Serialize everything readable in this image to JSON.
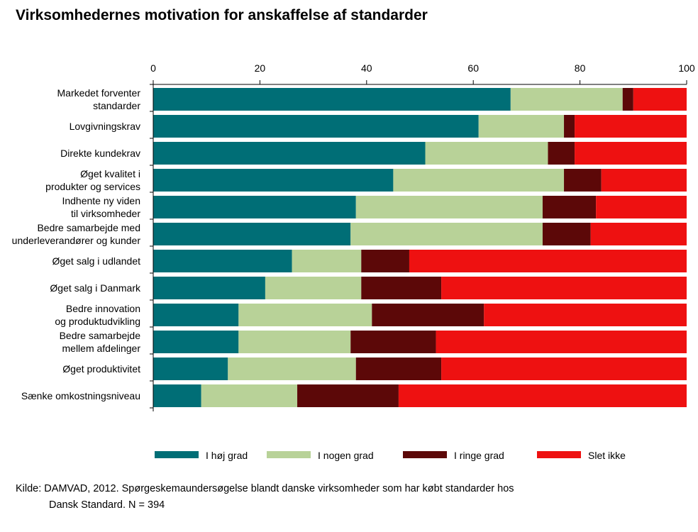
{
  "chart_title": "Virksomhedernes motivation for anskaffelse af standarder",
  "source": {
    "line1": "Kilde: DAMVAD, 2012. Spørgeskemaundersøgelse blandt danske virksomheder som har købt standarder hos",
    "line2": "Dansk Standard. N = 394"
  },
  "chart_data": {
    "type": "bar",
    "orientation": "horizontal",
    "stacked": true,
    "title": "Virksomhedernes motivation for anskaffelse af standarder",
    "xlim": [
      0,
      100
    ],
    "xticks": [
      0,
      20,
      40,
      60,
      80,
      100
    ],
    "x_axis_position": "top",
    "legend_position": "bottom",
    "categories": [
      [
        "Markedet forventer",
        "standarder"
      ],
      [
        "Lovgivningskrav"
      ],
      [
        "Direkte kundekrav"
      ],
      [
        "Øget kvalitet i",
        "produkter og services"
      ],
      [
        "Indhente ny viden",
        "til virksomheder"
      ],
      [
        "Bedre samarbejde med",
        "underleverandører og kunder"
      ],
      [
        "Øget salg i udlandet"
      ],
      [
        "Øget salg i Danmark"
      ],
      [
        "Bedre innovation",
        "og produktudvikling"
      ],
      [
        "Bedre samarbejde",
        "mellem afdelinger"
      ],
      [
        "Øget produktivitet"
      ],
      [
        "Sænke omkostningsniveau"
      ]
    ],
    "series": [
      {
        "name": "I høj grad",
        "color": "#006e76",
        "values": [
          67,
          61,
          51,
          45,
          38,
          37,
          26,
          21,
          16,
          16,
          14,
          9
        ]
      },
      {
        "name": "I nogen grad",
        "color": "#b8d298",
        "values": [
          21,
          16,
          23,
          32,
          35,
          36,
          13,
          18,
          25,
          21,
          24,
          18
        ]
      },
      {
        "name": "I ringe grad",
        "color": "#5c0808",
        "values": [
          2,
          2,
          5,
          7,
          10,
          9,
          9,
          15,
          21,
          16,
          16,
          19
        ]
      },
      {
        "name": "Slet ikke",
        "color": "#ee1111",
        "values": [
          10,
          21,
          21,
          16,
          17,
          18,
          52,
          46,
          38,
          47,
          46,
          54
        ]
      }
    ]
  }
}
